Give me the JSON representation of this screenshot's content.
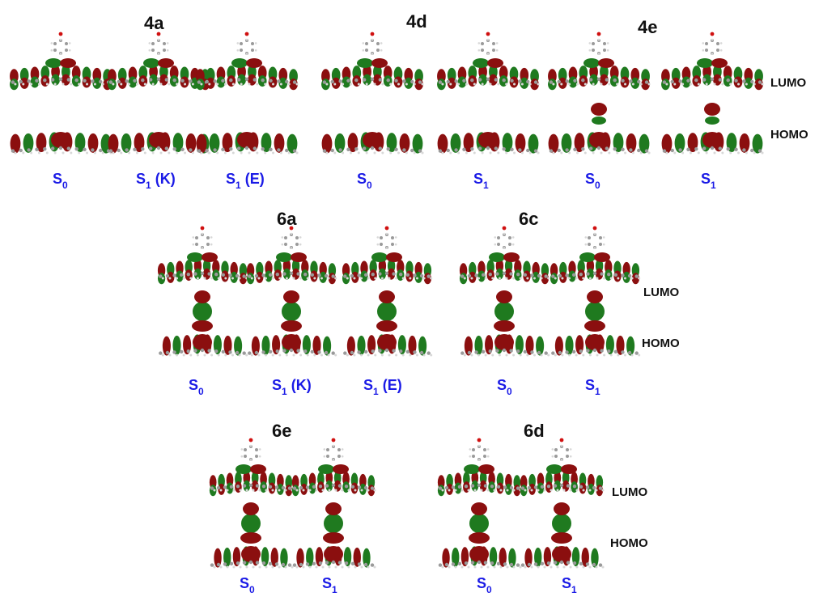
{
  "compounds": {
    "c4a": "4a",
    "c4d": "4d",
    "c4e": "4e",
    "c6a": "6a",
    "c6c": "6c",
    "c6e": "6e",
    "c6d": "6d"
  },
  "orbitals": {
    "lumo": "LUMO",
    "homo": "HOMO"
  },
  "states": {
    "s": "S",
    "sub0": "0",
    "sub1": "1",
    "k": " (K)",
    "e": " (E)"
  },
  "colors": {
    "lobe_positive": "#1f7a1f",
    "lobe_negative": "#8b0f0f",
    "atom_carbon": "#9a9a9a",
    "atom_hydrogen": "#d8d8d8",
    "atom_oxygen": "#d01010",
    "atom_nitrogen": "#1f3fd0",
    "state_label": "#1a1ae6"
  }
}
